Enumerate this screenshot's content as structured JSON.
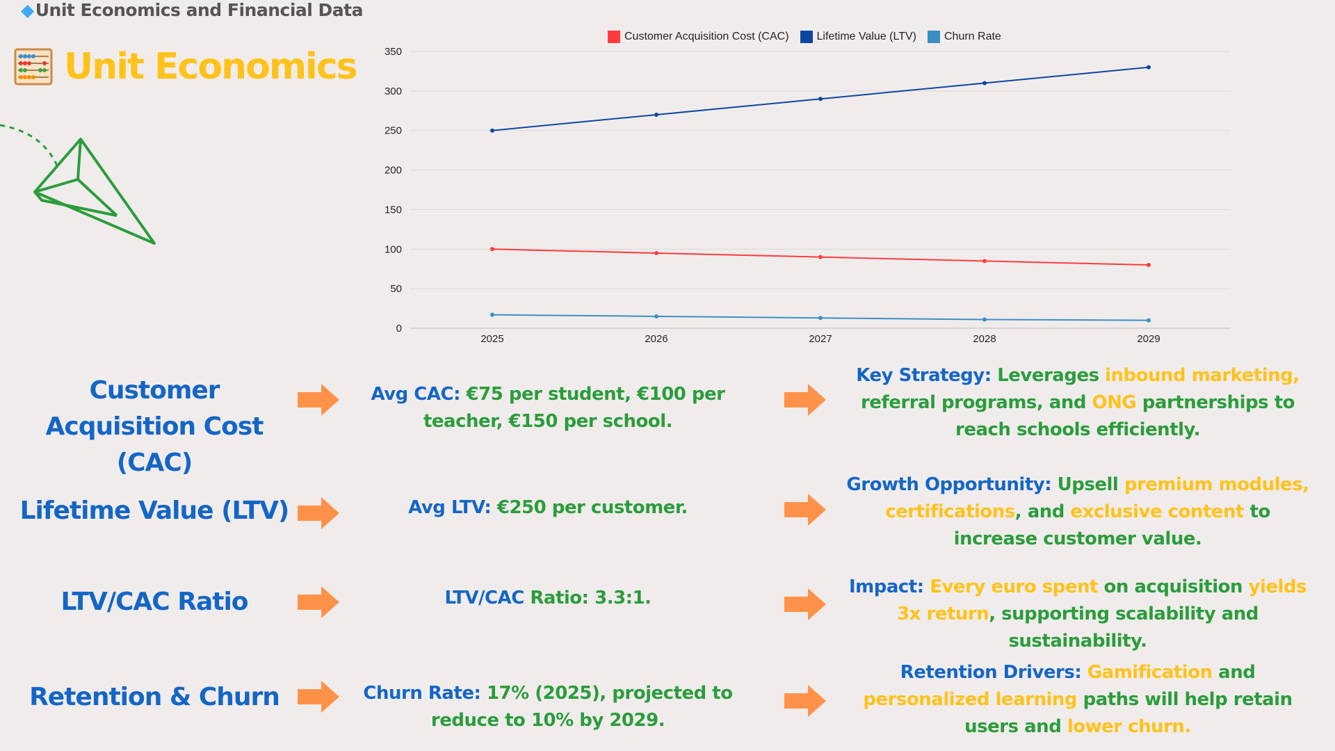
{
  "header": {
    "title": "Unit Economics and Financial Data",
    "icon": "gem-icon"
  },
  "page": {
    "title": "Unit Economics",
    "icon": "abacus-icon"
  },
  "colors": {
    "blue": "#1466c6",
    "green": "#2a9d3c",
    "yellow": "#ffc21a",
    "arrow": "#ff9248",
    "cac": "#ff3b3b",
    "ltv": "#0d47a1",
    "churn": "#3b8fc4"
  },
  "chart_data": {
    "type": "line",
    "categories": [
      "2025",
      "2026",
      "2027",
      "2028",
      "2029"
    ],
    "series": [
      {
        "name": "Customer Acquisition Cost (CAC)",
        "color": "#ff3b3b",
        "values": [
          100,
          95,
          90,
          85,
          80
        ]
      },
      {
        "name": "Lifetime Value (LTV)",
        "color": "#0d47a1",
        "values": [
          250,
          270,
          290,
          310,
          330
        ]
      },
      {
        "name": "Churn Rate",
        "color": "#3b8fc4",
        "values": [
          17,
          15,
          13,
          11,
          10
        ]
      }
    ],
    "ylim": [
      0,
      350
    ],
    "yticks": [
      0,
      50,
      100,
      150,
      200,
      250,
      300,
      350
    ],
    "grid": true,
    "legend": "top"
  },
  "rows": [
    {
      "label": "Customer Acquisition Cost (CAC)",
      "mid": [
        {
          "text": "Avg CAC: ",
          "c": "blue"
        },
        {
          "text": "€75 per student, €100 per teacher, €150 per school.",
          "c": "green"
        }
      ],
      "right": [
        {
          "text": "Key Strategy: ",
          "c": "blue"
        },
        {
          "text": "Leverages ",
          "c": "green"
        },
        {
          "text": "inbound marketing,",
          "c": "yellow"
        },
        {
          "text": " referral programs, and ",
          "c": "green"
        },
        {
          "text": "ONG",
          "c": "yellow"
        },
        {
          "text": " partnerships to reach schools efficiently.",
          "c": "green"
        }
      ]
    },
    {
      "label": "Lifetime Value (LTV)",
      "mid": [
        {
          "text": "Avg LTV: ",
          "c": "blue"
        },
        {
          "text": "€250 per customer.",
          "c": "green"
        }
      ],
      "right": [
        {
          "text": "Growth Opportunity: ",
          "c": "blue"
        },
        {
          "text": "Upsell ",
          "c": "green"
        },
        {
          "text": "premium modules, certifications",
          "c": "yellow"
        },
        {
          "text": ", and ",
          "c": "green"
        },
        {
          "text": "exclusive content",
          "c": "yellow"
        },
        {
          "text": " to increase customer value.",
          "c": "green"
        }
      ]
    },
    {
      "label": "LTV/CAC Ratio",
      "mid": [
        {
          "text": "LTV/CAC ",
          "c": "blue"
        },
        {
          "text": "Ratio: 3.3:1.",
          "c": "green"
        }
      ],
      "right": [
        {
          "text": "Impact: ",
          "c": "blue"
        },
        {
          "text": "Every euro spent",
          "c": "yellow"
        },
        {
          "text": " on acquisition ",
          "c": "green"
        },
        {
          "text": "yields 3x return",
          "c": "yellow"
        },
        {
          "text": ", supporting scalability and sustainability.",
          "c": "green"
        }
      ]
    },
    {
      "label": "Retention & Churn",
      "mid": [
        {
          "text": "Churn Rate: ",
          "c": "blue"
        },
        {
          "text": "17% (2025), projected to reduce to 10% by 2029.",
          "c": "green"
        }
      ],
      "right": [
        {
          "text": "Retention Drivers: ",
          "c": "blue"
        },
        {
          "text": "Gamification",
          "c": "yellow"
        },
        {
          "text": " and ",
          "c": "green"
        },
        {
          "text": "personalized learning",
          "c": "yellow"
        },
        {
          "text": " paths will help retain users and ",
          "c": "green"
        },
        {
          "text": "lower churn.",
          "c": "yellow"
        }
      ]
    }
  ]
}
